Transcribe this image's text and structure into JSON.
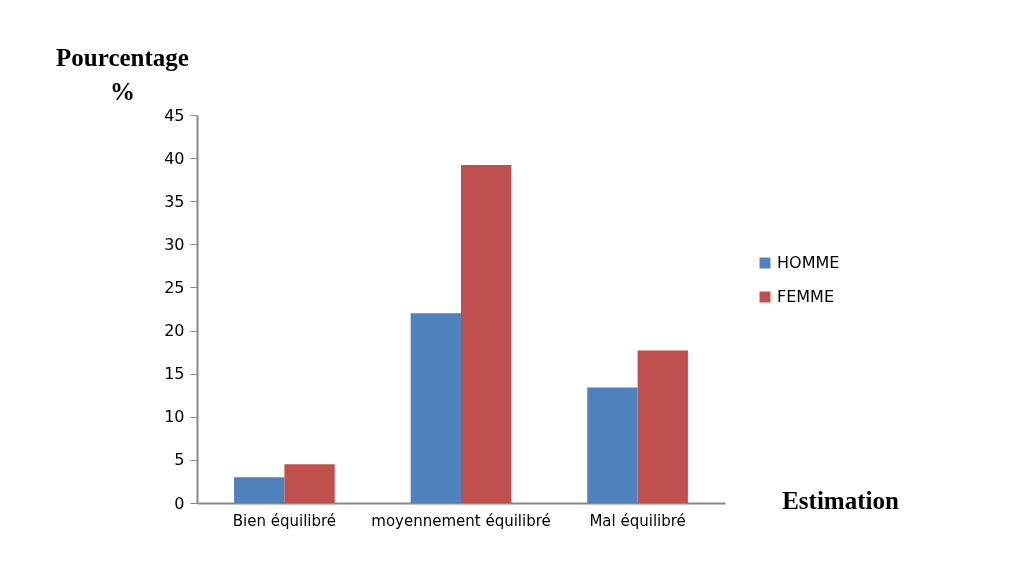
{
  "chart_data": {
    "type": "bar",
    "ylabel": "Pourcentage %",
    "xlabel": "Estimation",
    "categories": [
      "Bien équilibré",
      "moyennement équilibré",
      "Mal équilibré"
    ],
    "series": [
      {
        "name": "HOMME",
        "color": "#4f81bd",
        "values": [
          3,
          22,
          13.4
        ]
      },
      {
        "name": "FEMME",
        "color": "#c0504d",
        "values": [
          4.5,
          39.2,
          17.7
        ]
      }
    ],
    "ylim": [
      0,
      45
    ],
    "yticks": [
      0,
      5,
      10,
      15,
      20,
      25,
      30,
      35,
      40,
      45
    ],
    "grid": false,
    "legend": "right"
  }
}
